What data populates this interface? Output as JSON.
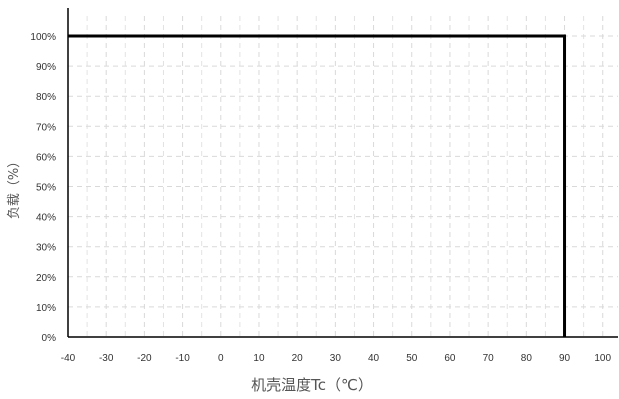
{
  "chart_data": {
    "type": "line",
    "title": "",
    "xlabel": "机壳温度Tc（℃）",
    "ylabel": "负载（%）",
    "xlim": [
      -40,
      104
    ],
    "ylim": [
      0,
      100
    ],
    "grid": true,
    "x_ticks": [
      -40,
      -30,
      -20,
      -10,
      0,
      10,
      20,
      30,
      40,
      50,
      60,
      70,
      80,
      90,
      100
    ],
    "x_tick_labels": [
      "-40",
      "-30",
      "-20",
      "-10",
      "0",
      "10",
      "20",
      "30",
      "40",
      "50",
      "60",
      "70",
      "80",
      "90",
      "100"
    ],
    "y_ticks": [
      0,
      10,
      20,
      30,
      40,
      50,
      60,
      70,
      80,
      90,
      100
    ],
    "y_tick_labels": [
      "0%",
      "10%",
      "20%",
      "30%",
      "40%",
      "50%",
      "60%",
      "70%",
      "80%",
      "90%",
      "100%"
    ],
    "series": [
      {
        "x": [
          -40,
          90,
          90
        ],
        "y": [
          100,
          100,
          0
        ],
        "color": "#000000"
      }
    ]
  }
}
